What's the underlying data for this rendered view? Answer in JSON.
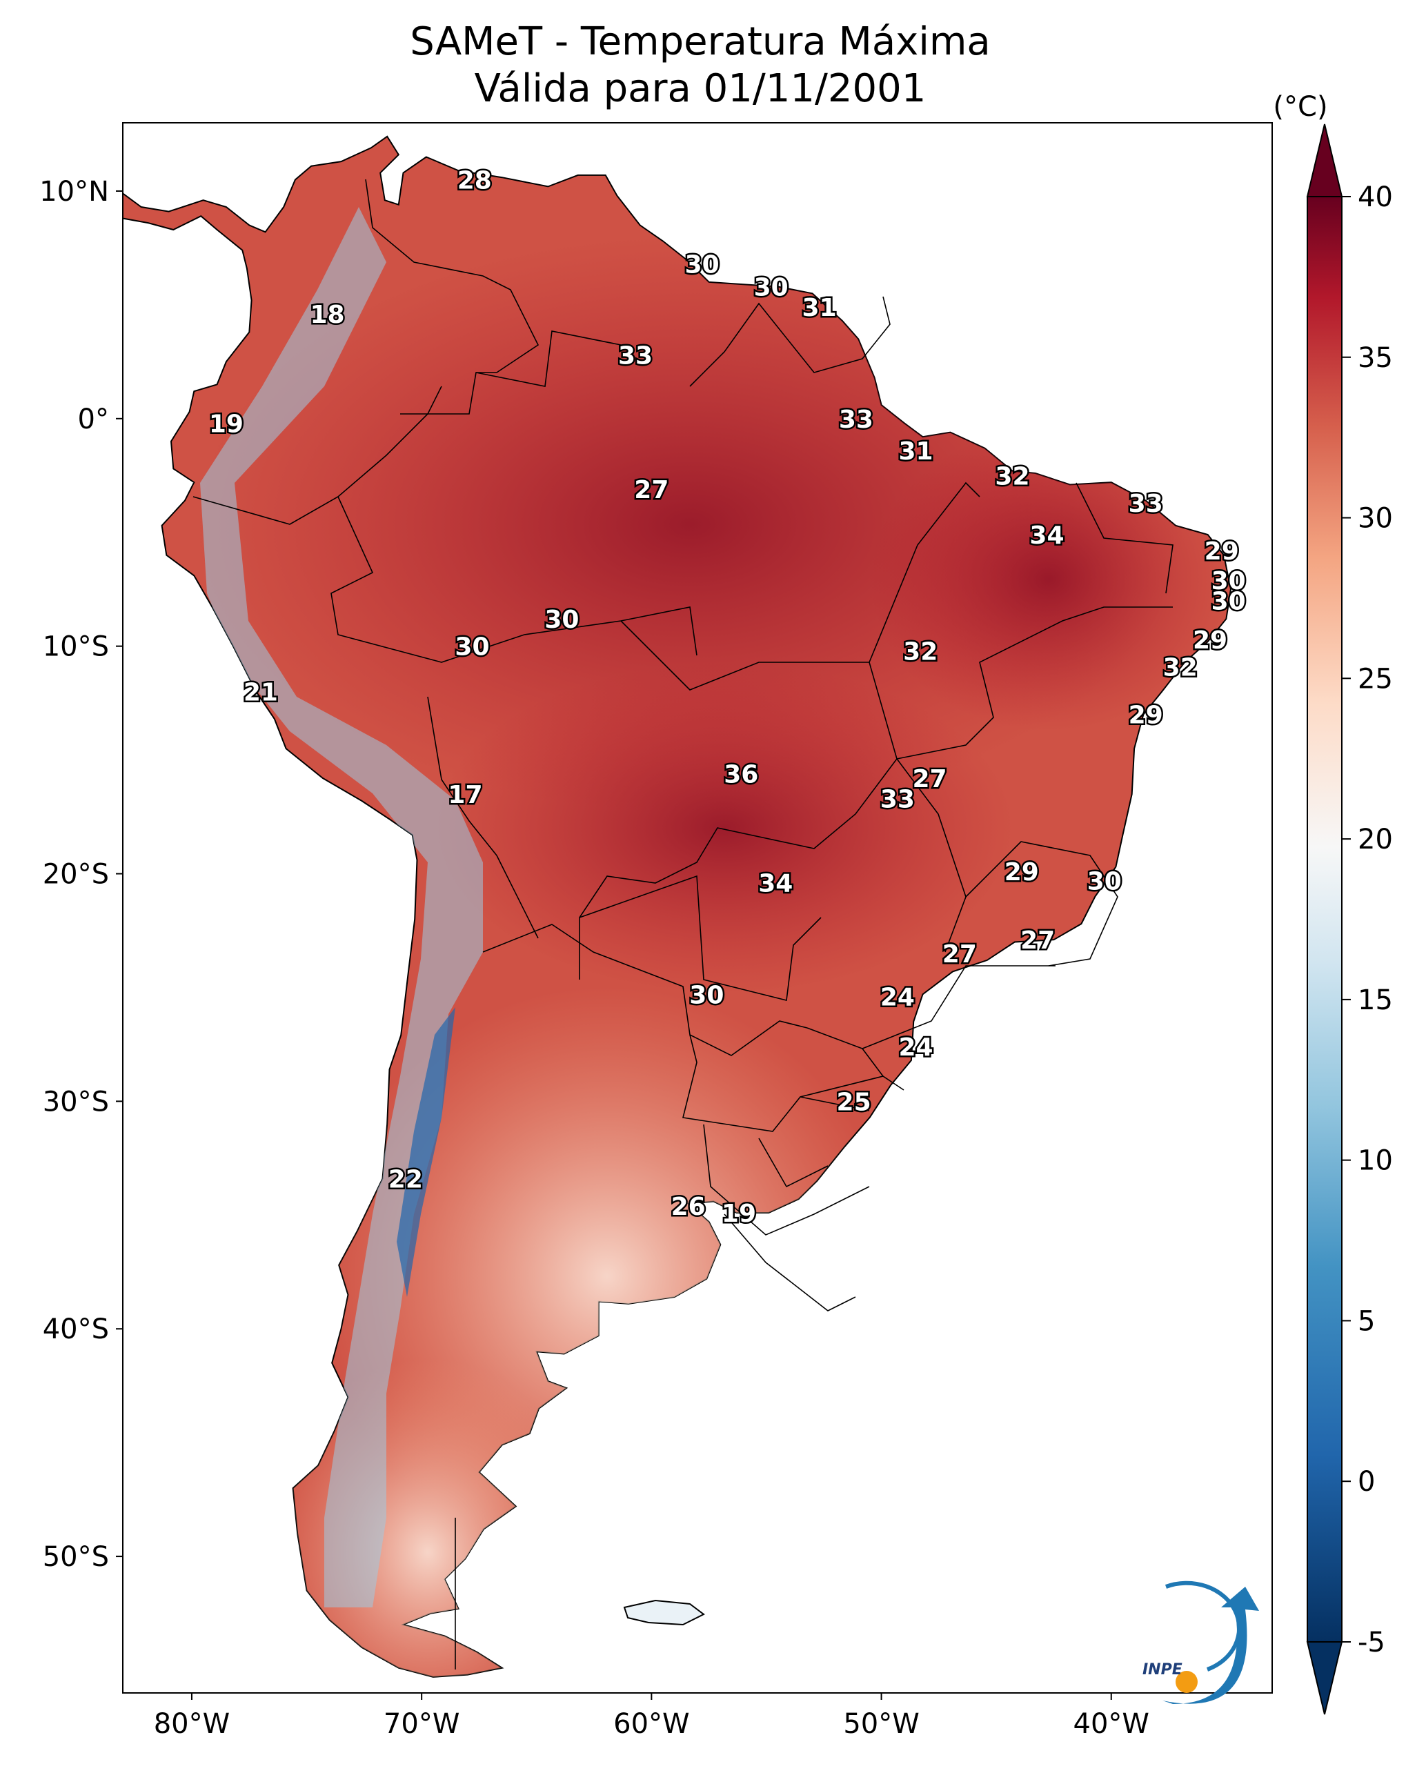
{
  "title": {
    "line1": "SAMeT - Temperatura Máxima",
    "line2": "Válida para 01/11/2001"
  },
  "colorbar": {
    "unit": "(°C)",
    "min": -5,
    "max": 40,
    "ticks": [
      "40",
      "35",
      "30",
      "25",
      "20",
      "15",
      "10",
      "5",
      "0",
      "-5"
    ],
    "tick_values": [
      40,
      35,
      30,
      25,
      20,
      15,
      10,
      5,
      0,
      -5
    ],
    "colors": {
      "high": "#67001f",
      "warm": "#d6604d",
      "neutral": "#f7f7f7",
      "cool": "#4393c3",
      "low": "#053061"
    }
  },
  "axes": {
    "lat_labels": [
      "10°N",
      "0°",
      "10°S",
      "20°S",
      "30°S",
      "40°S",
      "50°S"
    ],
    "lat_values": [
      10,
      0,
      -10,
      -20,
      -30,
      -40,
      -50
    ],
    "lon_labels": [
      "80°W",
      "70°W",
      "60°W",
      "50°W",
      "40°W"
    ],
    "lon_values": [
      -80,
      -70,
      -60,
      -50,
      -40
    ],
    "extent": {
      "lon": [
        -83,
        -33
      ],
      "lat": [
        -56,
        13
      ]
    }
  },
  "city_values": [
    {
      "v": "28",
      "lon": -67.7,
      "lat": 10.5
    },
    {
      "v": "30",
      "lon": -57.8,
      "lat": 6.8
    },
    {
      "v": "30",
      "lon": -54.8,
      "lat": 5.8
    },
    {
      "v": "31",
      "lon": -52.7,
      "lat": 4.9
    },
    {
      "v": "18",
      "lon": -74.1,
      "lat": 4.6
    },
    {
      "v": "33",
      "lon": -60.7,
      "lat": 2.8
    },
    {
      "v": "19",
      "lon": -78.5,
      "lat": -0.2
    },
    {
      "v": "33",
      "lon": -51.1,
      "lat": 0.0
    },
    {
      "v": "31",
      "lon": -48.5,
      "lat": -1.4
    },
    {
      "v": "27",
      "lon": -60.0,
      "lat": -3.1
    },
    {
      "v": "32",
      "lon": -44.3,
      "lat": -2.5
    },
    {
      "v": "33",
      "lon": -38.5,
      "lat": -3.7
    },
    {
      "v": "34",
      "lon": -42.8,
      "lat": -5.1
    },
    {
      "v": "29",
      "lon": -35.2,
      "lat": -5.8
    },
    {
      "v": "30",
      "lon": -34.9,
      "lat": -7.1
    },
    {
      "v": "30",
      "lon": -34.9,
      "lat": -8.0
    },
    {
      "v": "30",
      "lon": -63.9,
      "lat": -8.8
    },
    {
      "v": "30",
      "lon": -67.8,
      "lat": -10.0
    },
    {
      "v": "29",
      "lon": -35.7,
      "lat": -9.7
    },
    {
      "v": "32",
      "lon": -48.3,
      "lat": -10.2
    },
    {
      "v": "32",
      "lon": -37.0,
      "lat": -10.9
    },
    {
      "v": "21",
      "lon": -77.0,
      "lat": -12.0
    },
    {
      "v": "29",
      "lon": -38.5,
      "lat": -13.0
    },
    {
      "v": "36",
      "lon": -56.1,
      "lat": -15.6
    },
    {
      "v": "27",
      "lon": -47.9,
      "lat": -15.8
    },
    {
      "v": "33",
      "lon": -49.3,
      "lat": -16.7
    },
    {
      "v": "17",
      "lon": -68.1,
      "lat": -16.5
    },
    {
      "v": "29",
      "lon": -43.9,
      "lat": -19.9
    },
    {
      "v": "30",
      "lon": -40.3,
      "lat": -20.3
    },
    {
      "v": "34",
      "lon": -54.6,
      "lat": -20.4
    },
    {
      "v": "27",
      "lon": -43.2,
      "lat": -22.9
    },
    {
      "v": "27",
      "lon": -46.6,
      "lat": -23.5
    },
    {
      "v": "30",
      "lon": -57.6,
      "lat": -25.3
    },
    {
      "v": "24",
      "lon": -49.3,
      "lat": -25.4
    },
    {
      "v": "24",
      "lon": -48.5,
      "lat": -27.6
    },
    {
      "v": "25",
      "lon": -51.2,
      "lat": -30.0
    },
    {
      "v": "22",
      "lon": -70.7,
      "lat": -33.4
    },
    {
      "v": "26",
      "lon": -58.4,
      "lat": -34.6
    },
    {
      "v": "19",
      "lon": -56.2,
      "lat": -34.9
    }
  ],
  "logo": {
    "text": "INPE"
  }
}
